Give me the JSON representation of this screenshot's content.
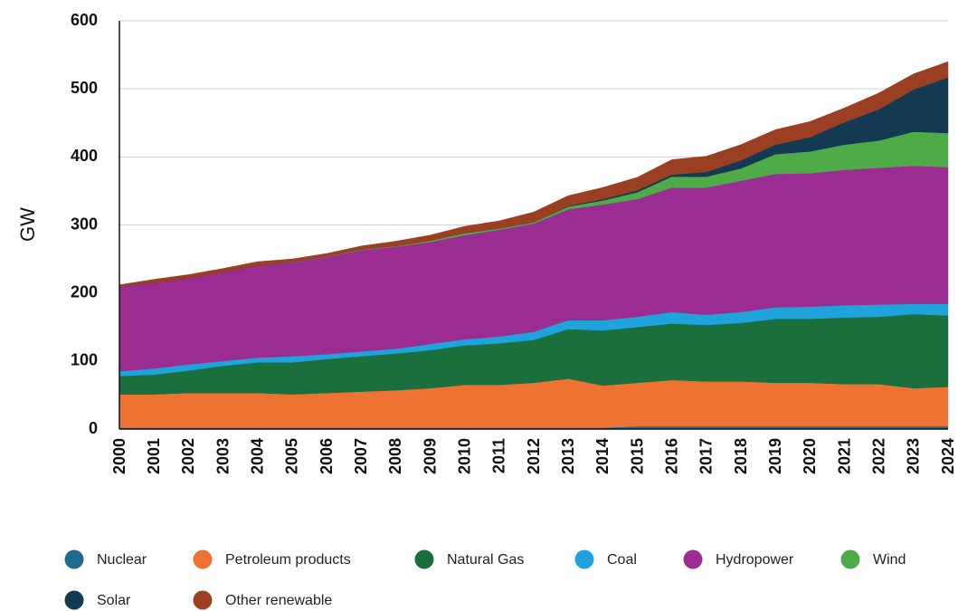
{
  "chart_data": {
    "type": "stacked_area",
    "y_label": "GW",
    "categories": [
      "2000",
      "2001",
      "2002",
      "2003",
      "2004",
      "2005",
      "2006",
      "2007",
      "2008",
      "2009",
      "2010",
      "2011",
      "2012",
      "2013",
      "2014",
      "2015",
      "2016",
      "2017",
      "2018",
      "2019",
      "2020",
      "2021",
      "2022",
      "2023",
      "2024"
    ],
    "ylim": [
      0,
      600
    ],
    "yticks": [
      0,
      100,
      200,
      300,
      400,
      500,
      600
    ],
    "grid": true,
    "series": [
      {
        "name": "Nuclear",
        "color": "#1f6b8e",
        "values": [
          2,
          2,
          2,
          2,
          2,
          2,
          2,
          2,
          2,
          2,
          2,
          2,
          2,
          2,
          2,
          4,
          4,
          4,
          4,
          4,
          4,
          4,
          4,
          4,
          4
        ]
      },
      {
        "name": "Petroleum products",
        "color": "#ee7333",
        "values": [
          49,
          49,
          51,
          51,
          51,
          49,
          51,
          53,
          55,
          58,
          63,
          63,
          66,
          72,
          62,
          64,
          68,
          66,
          66,
          64,
          64,
          62,
          62,
          56,
          58
        ]
      },
      {
        "name": "Natural Gas",
        "color": "#1a6f3c",
        "values": [
          27,
          29,
          33,
          40,
          45,
          47,
          50,
          52,
          54,
          56,
          58,
          61,
          63,
          73,
          81,
          82,
          83,
          83,
          86,
          94,
          94,
          98,
          99,
          109,
          105
        ]
      },
      {
        "name": "Coal",
        "color": "#1ea3dc",
        "values": [
          7,
          9,
          9,
          7,
          7,
          9,
          7,
          7,
          7,
          9,
          9,
          10,
          12,
          13,
          15,
          15,
          17,
          15,
          16,
          17,
          18,
          18,
          18,
          15,
          17
        ]
      },
      {
        "name": "Hydropower",
        "color": "#9b2c91",
        "values": [
          125,
          126,
          127,
          131,
          135,
          138,
          143,
          149,
          150,
          150,
          153,
          157,
          159,
          163,
          170,
          173,
          183,
          187,
          193,
          196,
          196,
          199,
          201,
          203,
          201
        ]
      },
      {
        "name": "Wind",
        "color": "#4eab48",
        "values": [
          0,
          0,
          0,
          0,
          0,
          0.5,
          0.5,
          1,
          1,
          2,
          3,
          2,
          2,
          4,
          6,
          10,
          16,
          16,
          18,
          29,
          32,
          37,
          40,
          50,
          50
        ]
      },
      {
        "name": "Solar",
        "color": "#133a52",
        "values": [
          0,
          0,
          0,
          0,
          0,
          0,
          0,
          0,
          0,
          0,
          0,
          0,
          0,
          1,
          2,
          3,
          3,
          7,
          12,
          14,
          21,
          33,
          46,
          62,
          82
        ]
      },
      {
        "name": "Other renewable",
        "color": "#9b3f22",
        "values": [
          2,
          5,
          5,
          5,
          6,
          4.5,
          4.5,
          5,
          7,
          8,
          10,
          11,
          15,
          15,
          17,
          19,
          22,
          23,
          23,
          22,
          23,
          21,
          24,
          23,
          23
        ]
      }
    ]
  }
}
